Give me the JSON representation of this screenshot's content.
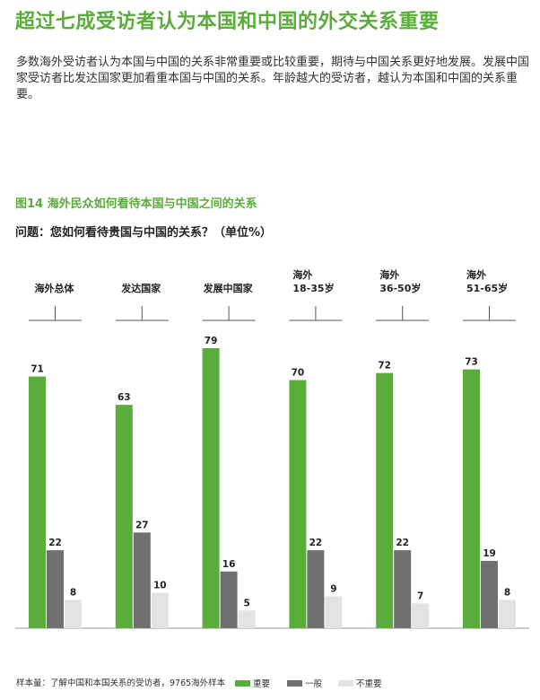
{
  "title": "超过七成受访者认为本国和中国的外交关系重要",
  "intro": "多数海外受访者认为本国与中国的关系非常重要或比较重要，期待与中国关系更好地发展。发展中国家受访者比发达国家更加看重本国与中国的关系。年龄越大的受访者，越认为本国和中国的关系重要。",
  "figure_title": "图14  海外民众如何看待本国与中国之间的关系",
  "question": "问题：您如何看待贵国与中国的关系？（单位%）",
  "footer": "样本量：了解中国和本国关系的受访者，9765海外样本",
  "colors": {
    "important": "#5aad3a",
    "general": "#707070",
    "not_important": "#e3e3e3"
  },
  "chart_data": {
    "type": "bar",
    "categories": [
      "海外总体",
      "发达国家",
      "发展中国家",
      "海外\n18-35岁",
      "海外\n36-50岁",
      "海外\n51-65岁"
    ],
    "series": [
      {
        "name": "重要",
        "values": [
          71,
          63,
          79,
          70,
          72,
          73
        ]
      },
      {
        "name": "一般",
        "values": [
          22,
          27,
          16,
          22,
          22,
          19
        ]
      },
      {
        "name": "不重要",
        "values": [
          8,
          10,
          5,
          9,
          7,
          8
        ]
      }
    ],
    "ylim": [
      0,
      80
    ],
    "legend_position": "bottom",
    "grid": false
  }
}
